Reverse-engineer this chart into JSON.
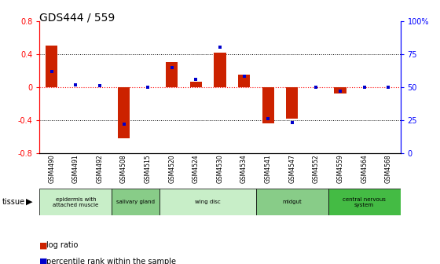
{
  "title": "GDS444 / 559",
  "samples": [
    "GSM4490",
    "GSM4491",
    "GSM4492",
    "GSM4508",
    "GSM4515",
    "GSM4520",
    "GSM4524",
    "GSM4530",
    "GSM4534",
    "GSM4541",
    "GSM4547",
    "GSM4552",
    "GSM4559",
    "GSM4564",
    "GSM4568"
  ],
  "log_ratio": [
    0.5,
    0.0,
    0.0,
    -0.62,
    0.0,
    0.3,
    0.07,
    0.42,
    0.15,
    -0.44,
    -0.38,
    0.0,
    -0.08,
    0.0,
    0.0
  ],
  "percentile": [
    62,
    52,
    51,
    22,
    50,
    65,
    56,
    80,
    58,
    26,
    23,
    50,
    47,
    50,
    50
  ],
  "tissues": [
    {
      "label": "epidermis with\nattached muscle",
      "start": 0,
      "end": 3,
      "color": "#c8eec8"
    },
    {
      "label": "salivary gland",
      "start": 3,
      "end": 5,
      "color": "#88cc88"
    },
    {
      "label": "wing disc",
      "start": 5,
      "end": 9,
      "color": "#c8eec8"
    },
    {
      "label": "midgut",
      "start": 9,
      "end": 12,
      "color": "#88cc88"
    },
    {
      "label": "central nervous\nsystem",
      "start": 12,
      "end": 15,
      "color": "#44bb44"
    }
  ],
  "ylim": [
    -0.8,
    0.8
  ],
  "y2lim": [
    0,
    100
  ],
  "yticks": [
    -0.8,
    -0.4,
    0.0,
    0.4,
    0.8
  ],
  "y2ticks": [
    0,
    25,
    50,
    75,
    100
  ],
  "hlines": [
    -0.4,
    0.0,
    0.4
  ],
  "bar_color": "#cc2200",
  "dot_color": "#0000cc",
  "bar_width": 0.5
}
